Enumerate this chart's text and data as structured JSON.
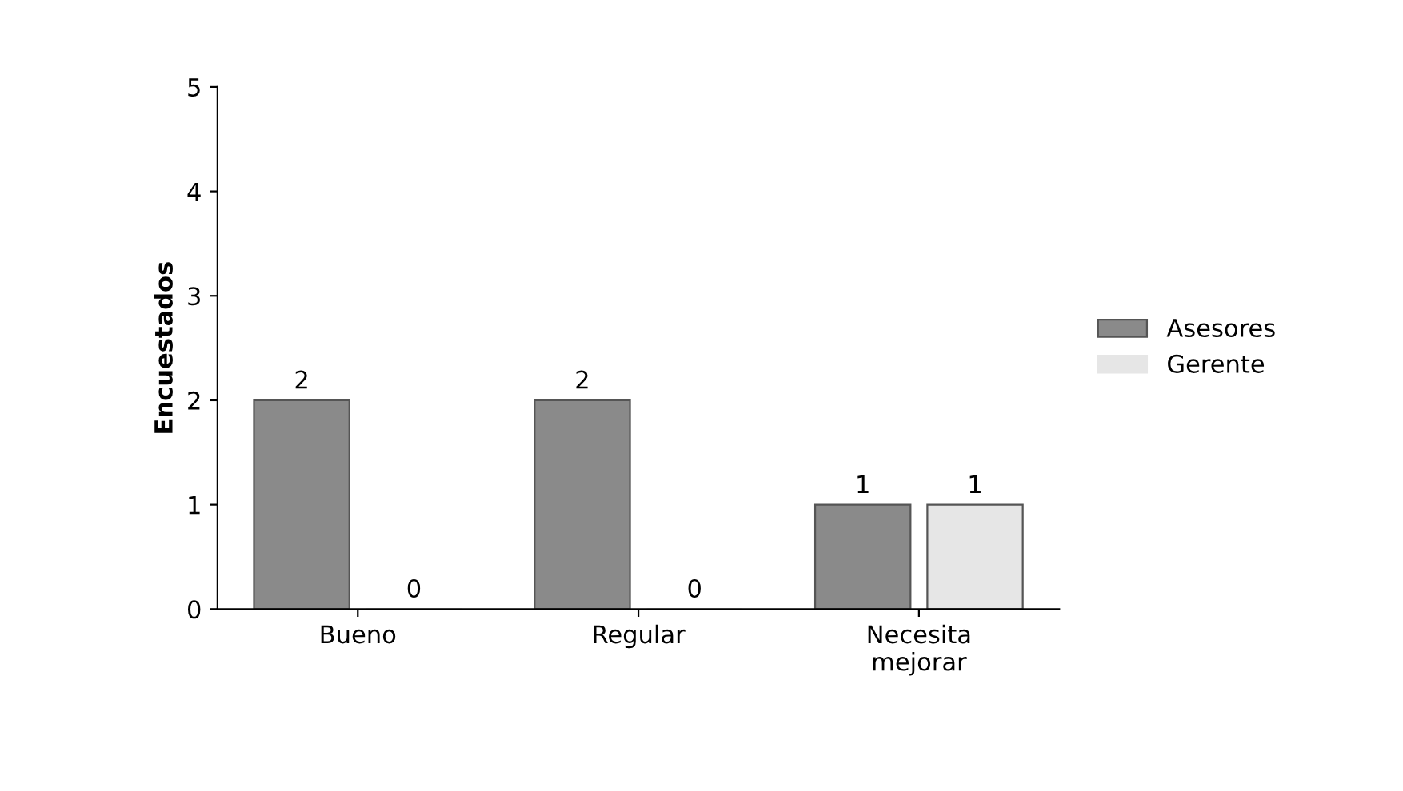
{
  "chart_data": {
    "type": "bar",
    "ylabel": "Encuestados",
    "categories": [
      "Bueno",
      "Regular",
      "Necesita\nmejorar"
    ],
    "series": [
      {
        "name": "Asesores",
        "color": "#8a8a8a",
        "values": [
          2,
          2,
          1
        ]
      },
      {
        "name": "Gerente",
        "color": "#e6e6e6",
        "values": [
          0,
          0,
          1
        ]
      }
    ],
    "ylim": [
      0,
      5
    ],
    "yticks": [
      0,
      1,
      2,
      3,
      4,
      5
    ],
    "data_labels": true,
    "legend": "right",
    "grid": false
  }
}
